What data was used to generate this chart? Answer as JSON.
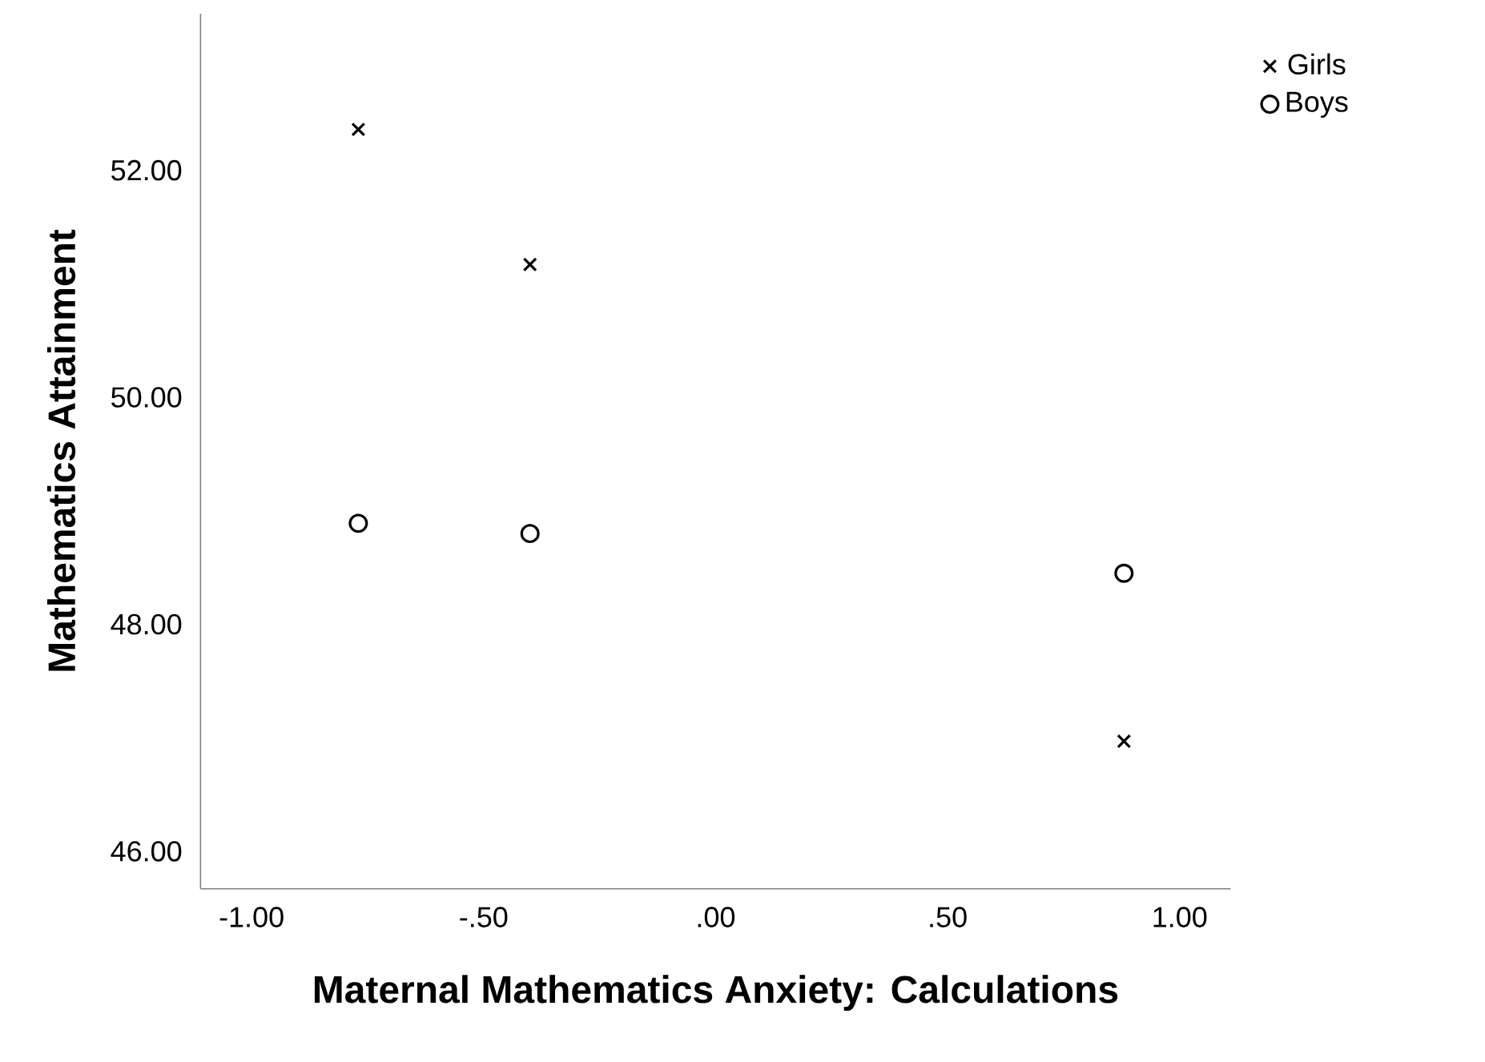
{
  "chart_data": {
    "type": "scatter",
    "xlabel": "Maternal Mathematics Anxiety: Calculations",
    "ylabel": "Mathematics Attainment",
    "x": [
      -0.77,
      -0.4,
      0.88
    ],
    "series": [
      {
        "name": "Girls",
        "color": "#000000",
        "marker": "cross",
        "values": [
          52.36,
          51.17,
          46.97
        ]
      },
      {
        "name": "Boys",
        "color": "#000000",
        "marker": "circle",
        "values": [
          48.89,
          48.8,
          48.45
        ]
      }
    ],
    "xlim": [
      -1.11,
      1.11
    ],
    "ylim": [
      45.67,
      53.38
    ],
    "xticks": [
      {
        "value": -1,
        "label": "-1.00"
      },
      {
        "value": -0.5,
        "label": "-.50"
      },
      {
        "value": 0,
        "label": ".00"
      },
      {
        "value": 0.5,
        "label": ".50"
      },
      {
        "value": 1,
        "label": "1.00"
      }
    ],
    "yticks": [
      {
        "value": 46,
        "label": "46.00"
      },
      {
        "value": 48,
        "label": "48.00"
      },
      {
        "value": 50,
        "label": "50.00"
      },
      {
        "value": 52,
        "label": "52.00"
      }
    ],
    "grid": false,
    "legend": "top right"
  }
}
